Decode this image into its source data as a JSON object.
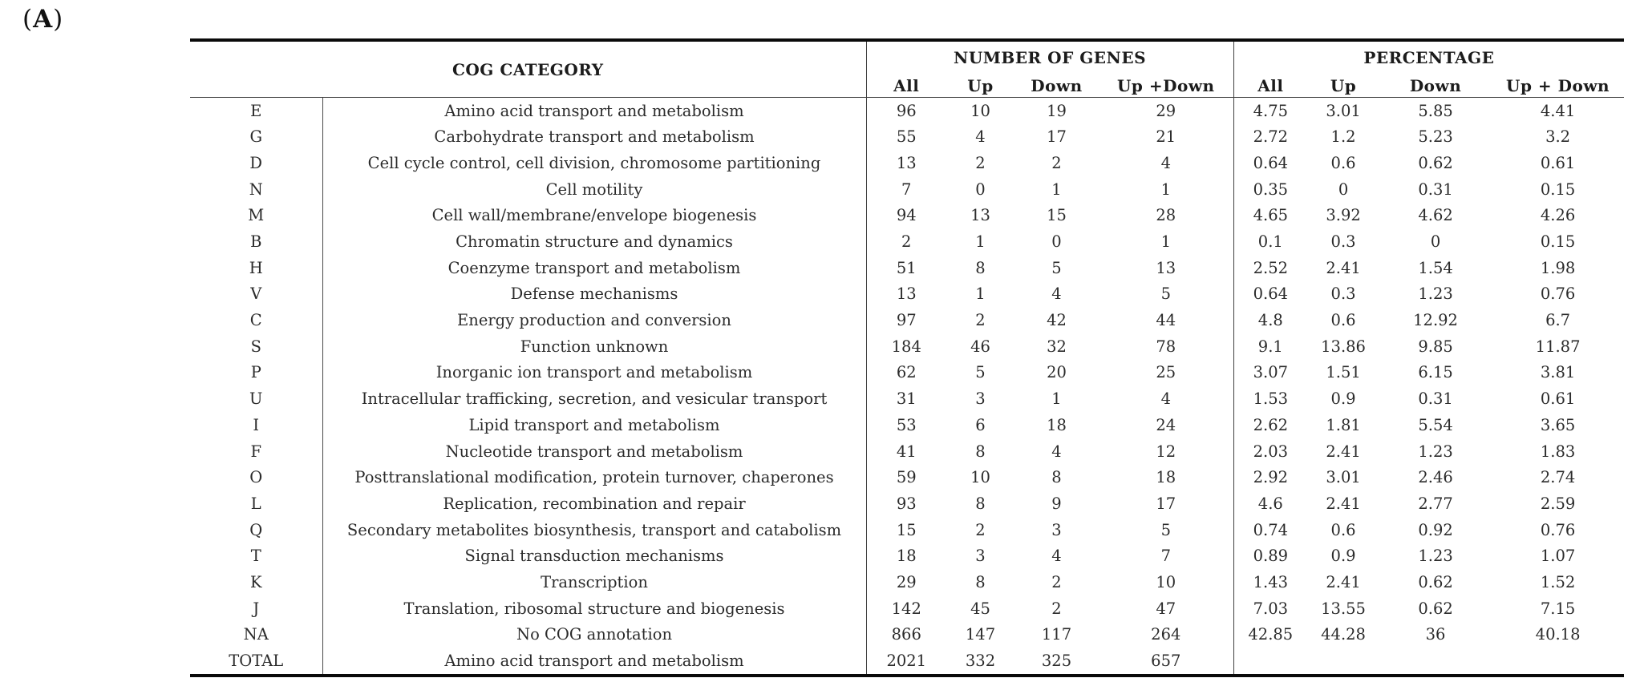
{
  "figure_label": {
    "open_paren": "(",
    "letter": "A",
    "close_paren": ")"
  },
  "table": {
    "headers": {
      "cog_category": "COG CATEGORY",
      "number_of_genes": "NUMBER OF GENES",
      "percentage": "PERCENTAGE",
      "genes_sub": [
        "All",
        "Up",
        "Down",
        "Up +Down"
      ],
      "pct_sub": [
        "All",
        "Up",
        "Down",
        "Up + Down"
      ]
    },
    "rows": [
      {
        "code": "E",
        "desc": "Amino acid transport and metabolism",
        "genes": [
          "96",
          "10",
          "19",
          "29"
        ],
        "pct": [
          "4.75",
          "3.01",
          "5.85",
          "4.41"
        ]
      },
      {
        "code": "G",
        "desc": "Carbohydrate transport and metabolism",
        "genes": [
          "55",
          "4",
          "17",
          "21"
        ],
        "pct": [
          "2.72",
          "1.2",
          "5.23",
          "3.2"
        ]
      },
      {
        "code": "D",
        "desc": "Cell cycle control, cell division, chromosome partitioning",
        "genes": [
          "13",
          "2",
          "2",
          "4"
        ],
        "pct": [
          "0.64",
          "0.6",
          "0.62",
          "0.61"
        ]
      },
      {
        "code": "N",
        "desc": "Cell motility",
        "genes": [
          "7",
          "0",
          "1",
          "1"
        ],
        "pct": [
          "0.35",
          "0",
          "0.31",
          "0.15"
        ]
      },
      {
        "code": "M",
        "desc": "Cell wall/membrane/envelope biogenesis",
        "genes": [
          "94",
          "13",
          "15",
          "28"
        ],
        "pct": [
          "4.65",
          "3.92",
          "4.62",
          "4.26"
        ]
      },
      {
        "code": "B",
        "desc": "Chromatin structure and dynamics",
        "genes": [
          "2",
          "1",
          "0",
          "1"
        ],
        "pct": [
          "0.1",
          "0.3",
          "0",
          "0.15"
        ]
      },
      {
        "code": "H",
        "desc": "Coenzyme transport and metabolism",
        "genes": [
          "51",
          "8",
          "5",
          "13"
        ],
        "pct": [
          "2.52",
          "2.41",
          "1.54",
          "1.98"
        ]
      },
      {
        "code": "V",
        "desc": "Defense mechanisms",
        "genes": [
          "13",
          "1",
          "4",
          "5"
        ],
        "pct": [
          "0.64",
          "0.3",
          "1.23",
          "0.76"
        ]
      },
      {
        "code": "C",
        "desc": "Energy production and conversion",
        "genes": [
          "97",
          "2",
          "42",
          "44"
        ],
        "pct": [
          "4.8",
          "0.6",
          "12.92",
          "6.7"
        ]
      },
      {
        "code": "S",
        "desc": "Function unknown",
        "genes": [
          "184",
          "46",
          "32",
          "78"
        ],
        "pct": [
          "9.1",
          "13.86",
          "9.85",
          "11.87"
        ]
      },
      {
        "code": "P",
        "desc": "Inorganic ion transport and metabolism",
        "genes": [
          "62",
          "5",
          "20",
          "25"
        ],
        "pct": [
          "3.07",
          "1.51",
          "6.15",
          "3.81"
        ]
      },
      {
        "code": "U",
        "desc": "Intracellular trafficking, secretion, and vesicular transport",
        "genes": [
          "31",
          "3",
          "1",
          "4"
        ],
        "pct": [
          "1.53",
          "0.9",
          "0.31",
          "0.61"
        ]
      },
      {
        "code": "I",
        "desc": "Lipid transport and metabolism",
        "genes": [
          "53",
          "6",
          "18",
          "24"
        ],
        "pct": [
          "2.62",
          "1.81",
          "5.54",
          "3.65"
        ]
      },
      {
        "code": "F",
        "desc": "Nucleotide transport and metabolism",
        "genes": [
          "41",
          "8",
          "4",
          "12"
        ],
        "pct": [
          "2.03",
          "2.41",
          "1.23",
          "1.83"
        ]
      },
      {
        "code": "O",
        "desc": "Posttranslational modification, protein turnover, chaperones",
        "genes": [
          "59",
          "10",
          "8",
          "18"
        ],
        "pct": [
          "2.92",
          "3.01",
          "2.46",
          "2.74"
        ]
      },
      {
        "code": "L",
        "desc": "Replication, recombination and repair",
        "genes": [
          "93",
          "8",
          "9",
          "17"
        ],
        "pct": [
          "4.6",
          "2.41",
          "2.77",
          "2.59"
        ]
      },
      {
        "code": "Q",
        "desc": "Secondary metabolites biosynthesis, transport and catabolism",
        "genes": [
          "15",
          "2",
          "3",
          "5"
        ],
        "pct": [
          "0.74",
          "0.6",
          "0.92",
          "0.76"
        ]
      },
      {
        "code": "T",
        "desc": "Signal transduction mechanisms",
        "genes": [
          "18",
          "3",
          "4",
          "7"
        ],
        "pct": [
          "0.89",
          "0.9",
          "1.23",
          "1.07"
        ]
      },
      {
        "code": "K",
        "desc": "Transcription",
        "genes": [
          "29",
          "8",
          "2",
          "10"
        ],
        "pct": [
          "1.43",
          "2.41",
          "0.62",
          "1.52"
        ]
      },
      {
        "code": "J",
        "desc": "Translation, ribosomal structure and biogenesis",
        "genes": [
          "142",
          "45",
          "2",
          "47"
        ],
        "pct": [
          "7.03",
          "13.55",
          "0.62",
          "7.15"
        ]
      },
      {
        "code": "NA",
        "desc": "No COG annotation",
        "genes": [
          "866",
          "147",
          "117",
          "264"
        ],
        "pct": [
          "42.85",
          "44.28",
          "36",
          "40.18"
        ]
      },
      {
        "code": "TOTAL",
        "desc": "Amino acid transport and metabolism",
        "genes": [
          "2021",
          "332",
          "325",
          "657"
        ],
        "pct": [
          "",
          "",
          "",
          ""
        ]
      }
    ]
  }
}
